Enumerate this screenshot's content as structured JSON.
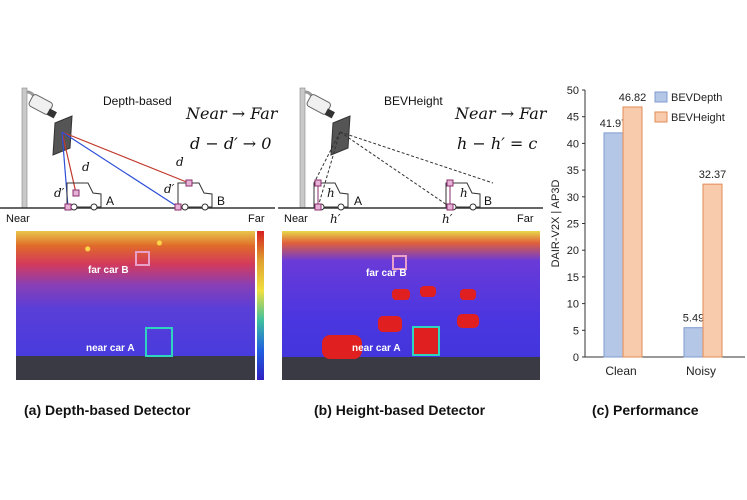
{
  "panel_a": {
    "title": "Depth-based",
    "eq_line1": "Near → Far",
    "eq_line2": "d − d′ → 0",
    "near_label": "Near",
    "far_label": "Far",
    "car_a": "A",
    "car_b": "B",
    "d_a": "d",
    "dp_a": "d′",
    "d_b": "d",
    "dp_b": "d′",
    "img_far_car": "far car B",
    "img_near_car": "near car A",
    "caption": "(a) Depth-based Detector"
  },
  "panel_b": {
    "title": "BEVHeight",
    "eq_line1": "Near → Far",
    "eq_line2": "h − h′ = c",
    "near_label": "Near",
    "far_label": "Far",
    "car_a": "A",
    "car_b": "B",
    "h_a": "h",
    "hp_a": "h′",
    "h_b": "h",
    "hp_b": "h′",
    "img_far_car": "far car B",
    "img_near_car": "near car A",
    "caption": "(b) Height-based Detector"
  },
  "panel_c": {
    "caption": "(c) Performance"
  },
  "chart_data": {
    "type": "bar",
    "categories": [
      "Clean",
      "Noisy"
    ],
    "series": [
      {
        "name": "BEVDepth",
        "values": [
          41.97,
          5.49
        ],
        "color": "#b4c7e7",
        "edge": "#7f9bd1"
      },
      {
        "name": "BEVHeight",
        "values": [
          46.82,
          32.37
        ],
        "color": "#f8cbad",
        "edge": "#e38b56"
      }
    ],
    "value_labels": [
      "41.97",
      "5.49",
      "46.82",
      "32.37"
    ],
    "ylabel": "DAIR-V2X | AP3D",
    "ylim": [
      0,
      50
    ],
    "yticks": [
      "0",
      "5",
      "10",
      "15",
      "20",
      "25",
      "30",
      "35",
      "40",
      "45",
      "50"
    ],
    "legend": "top-right",
    "grid": false
  }
}
